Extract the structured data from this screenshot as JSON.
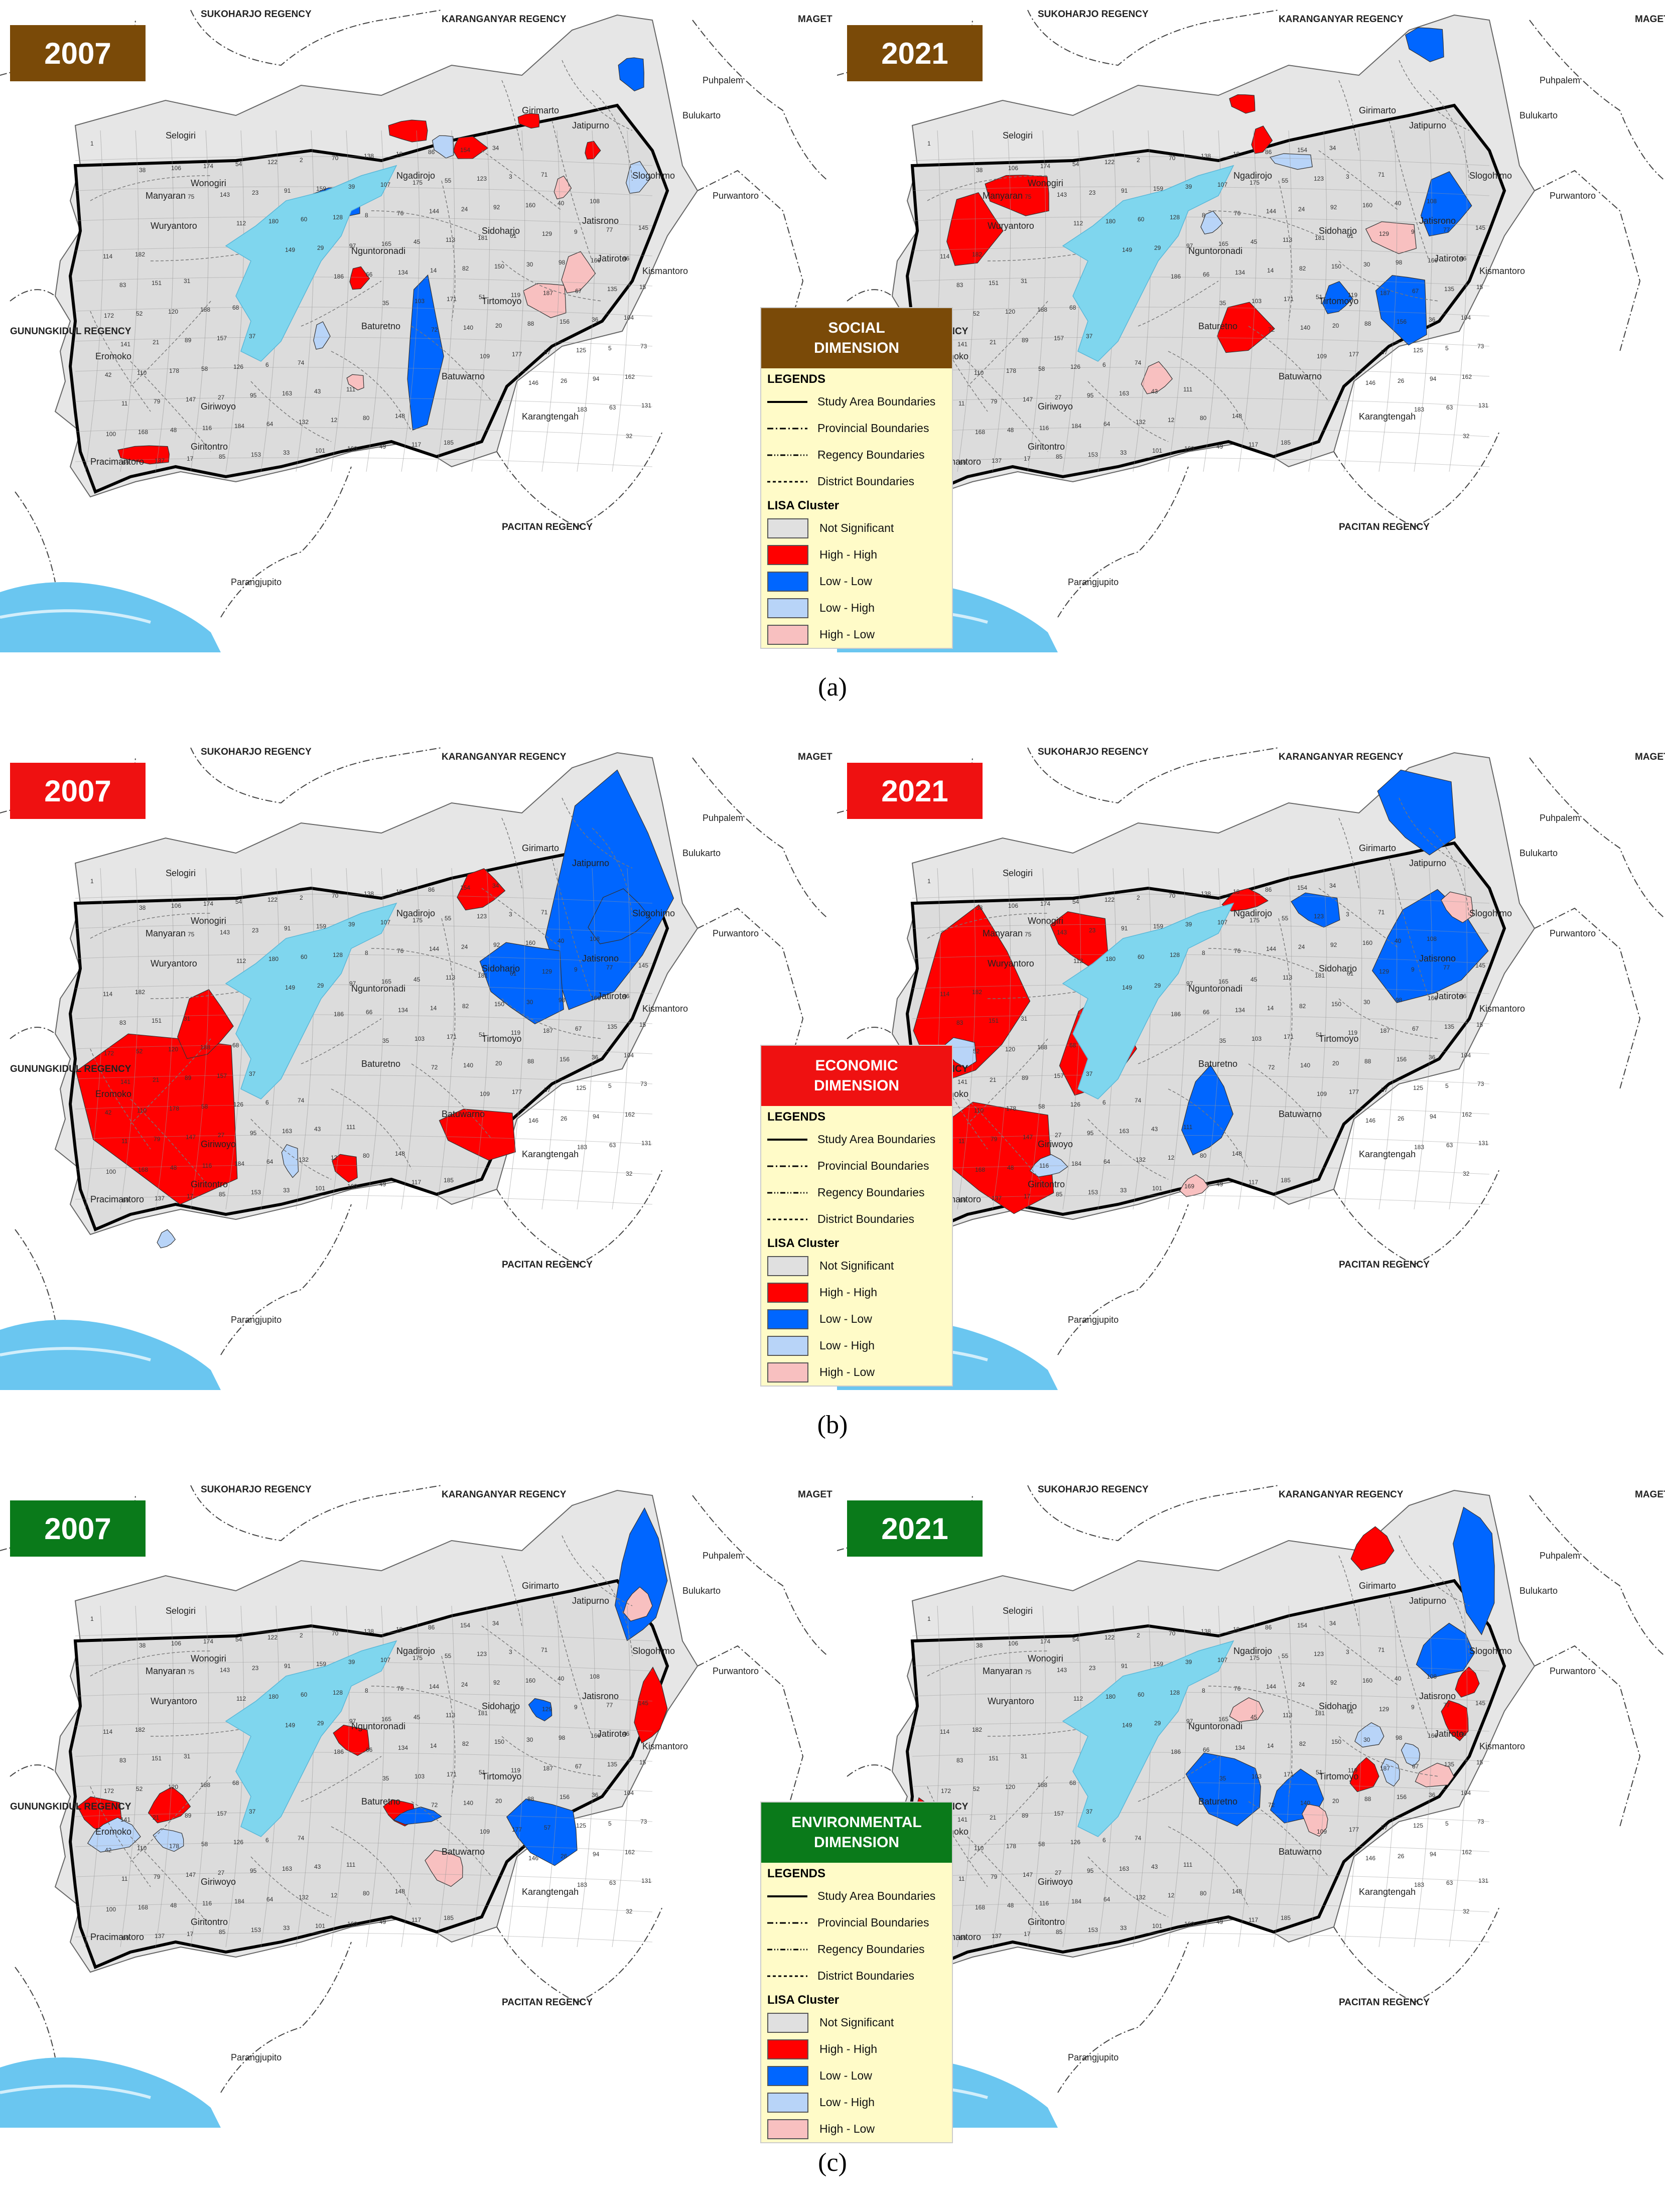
{
  "panels": [
    {
      "caption": "(a)",
      "legend_title": [
        "SOCIAL",
        "DIMENSION"
      ],
      "legend_color": "#7a4a08",
      "left_year": "2007",
      "right_year": "2021",
      "badge_color": "#7a4a08"
    },
    {
      "caption": "(b)",
      "legend_title": [
        "ECONOMIC",
        "DIMENSION"
      ],
      "legend_color": "#ef1111",
      "left_year": "2007",
      "right_year": "2021",
      "badge_color": "#ef1111"
    },
    {
      "caption": "(c)",
      "legend_title": [
        "ENVIRONMENTAL",
        "DIMENSION"
      ],
      "legend_color": "#0a7a1a",
      "left_year": "2007",
      "right_year": "2021",
      "badge_color": "#0a7a1a"
    }
  ],
  "legend": {
    "legends_header": "LEGENDS",
    "boundaries": [
      "Study Area Boundaries",
      "Provincial Boundaries",
      "Regency Boundaries",
      "District Boundaries"
    ],
    "lisa_header": "LISA Cluster",
    "clusters": [
      {
        "label": "Not Significant",
        "color": "#e0e0e0"
      },
      {
        "label": "High - High",
        "color": "#ff0000"
      },
      {
        "label": "Low - Low",
        "color": "#0066ff"
      },
      {
        "label": "Low - High",
        "color": "#b8d4f8"
      },
      {
        "label": "High - Low",
        "color": "#f8c0c0"
      }
    ]
  },
  "map_labels": {
    "sukoharjo": "SUKOHARJO REGENCY",
    "karanganyar": "KARANGANYAR REGENCY",
    "magetan": "MAGET",
    "gunungkidul": "GUNUNGKIDUL REGENCY",
    "pacitan": "PACITAN REGENCY",
    "puhpalem": "Puhpalem",
    "bulukarto": "Bulukarto",
    "purwantoro": "Purwantoro",
    "selogiri": "Selogiri",
    "parangjupito": "Parangjupito",
    "slogohimo": "Slogohimo",
    "kismantoro": "Kismantoro",
    "jatipurno": "Jatipurno",
    "girimarto": "Girimarto",
    "jatisrono": "Jatisrono",
    "jatiroto": "Jatiroto",
    "ngadirojo": "Ngadirojo",
    "sidoharjo": "Sidoharjo",
    "nguntoronadi": "Nguntoronadi",
    "tirtomoyo": "Tirtomoyo",
    "baturetno": "Baturetno",
    "batuwarno": "Batuwarno",
    "karangtengah": "Karangtengah",
    "giriwoyo": "Giriwoyo",
    "giritontro": "Giritontro",
    "pracimantoro": "Pracimantoro",
    "eromoko": "Eromoko",
    "wuryantoro": "Wuryantoro",
    "manyaran": "Manyaran",
    "wonogiri": "Wonogiri"
  }
}
